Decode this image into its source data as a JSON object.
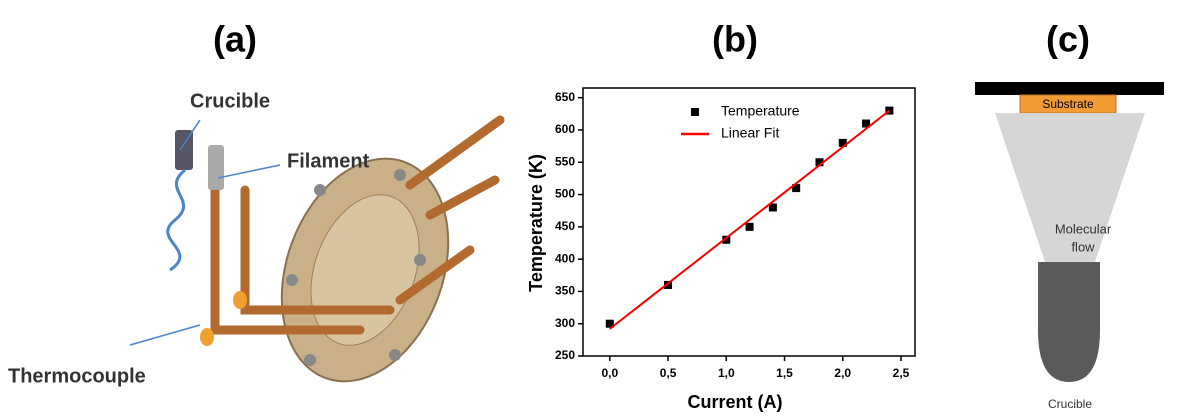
{
  "panel_a": {
    "label": "(a)",
    "callouts": [
      "Crucible",
      "Filament",
      "Thermocouple"
    ]
  },
  "chart_data": {
    "type": "scatter",
    "title": "(b)",
    "x_label": "Current (A)",
    "y_label": "Temperature (K)",
    "xlim": [
      -0.23,
      2.62
    ],
    "ylim": [
      250,
      665
    ],
    "xticks": [
      {
        "value": 0,
        "label": "0,0"
      },
      {
        "value": 0.5,
        "label": "0,5"
      },
      {
        "value": 1,
        "label": "1,0"
      },
      {
        "value": 1.5,
        "label": "1,5"
      },
      {
        "value": 2,
        "label": "2,0"
      },
      {
        "value": 2.5,
        "label": "2,5"
      }
    ],
    "yticks": [
      250,
      300,
      350,
      400,
      450,
      500,
      550,
      600,
      650
    ],
    "grid": false,
    "legend": "upper center",
    "series": [
      {
        "name": "Temperature",
        "color": "#000000",
        "x": [
          0,
          0.5,
          1.0,
          1.2,
          1.4,
          1.6,
          1.8,
          2.0,
          2.2,
          2.4
        ],
        "values": [
          300,
          360,
          430,
          450,
          480,
          510,
          550,
          580,
          610,
          630
        ]
      },
      {
        "name": "Linear Fit",
        "color": "#ff0000",
        "x": [
          0,
          2.4
        ],
        "values": [
          292,
          630
        ]
      }
    ]
  },
  "panel_c": {
    "label": "(c)",
    "substrate": "Substrate",
    "flow": [
      "Molecular",
      "flow"
    ],
    "source": "Crucible"
  }
}
